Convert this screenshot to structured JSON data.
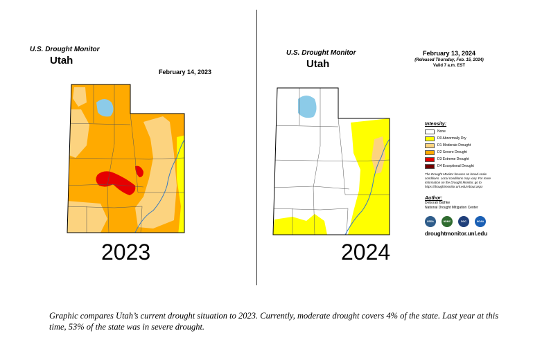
{
  "left_map": {
    "monitor_title": "U.S. Drought Monitor",
    "state": "Utah",
    "date": "February 14, 2023",
    "year_label": "2023"
  },
  "right_map": {
    "monitor_title": "U.S. Drought Monitor",
    "state": "Utah",
    "date": "February 13, 2024",
    "released": "(Released Thursday, Feb. 15, 2024)",
    "valid": "Valid 7 a.m. EST",
    "year_label": "2024"
  },
  "legend": {
    "title": "Intensity:",
    "items": [
      {
        "label": "None",
        "color": "#ffffff"
      },
      {
        "label": "D0 Abnormally Dry",
        "color": "#ffff00"
      },
      {
        "label": "D1 Moderate Drought",
        "color": "#fcd37f"
      },
      {
        "label": "D2 Severe Drought",
        "color": "#ffaa00"
      },
      {
        "label": "D3 Extreme Drought",
        "color": "#e60000"
      },
      {
        "label": "D4 Exceptional Drought",
        "color": "#730000"
      }
    ],
    "note": "The Drought Monitor focuses on broad-scale conditions. Local conditions may vary. For more information on the Drought Monitor, go to https://droughtmonitor.unl.edu/About.aspx",
    "author_heading": "Author:",
    "author_name": "Deborah Bathke",
    "author_org": "National Drought Mitigation Center",
    "logos": [
      {
        "name": "usda-logo",
        "text": "USDA",
        "color": "#2e5c8a"
      },
      {
        "name": "ndmc-logo",
        "text": "NDMC",
        "color": "#2f6b2f"
      },
      {
        "name": "doc-logo",
        "text": "DOC",
        "color": "#1f3f7a"
      },
      {
        "name": "noaa-logo",
        "text": "NOAA",
        "color": "#1a5fb4"
      }
    ],
    "url": "droughtmonitor.unl.edu"
  },
  "caption": "Graphic compares Utah’s current drought situation to 2023. Currently, moderate drought covers 4% of the state. Last year at this time, 53% of the state was in severe drought."
}
